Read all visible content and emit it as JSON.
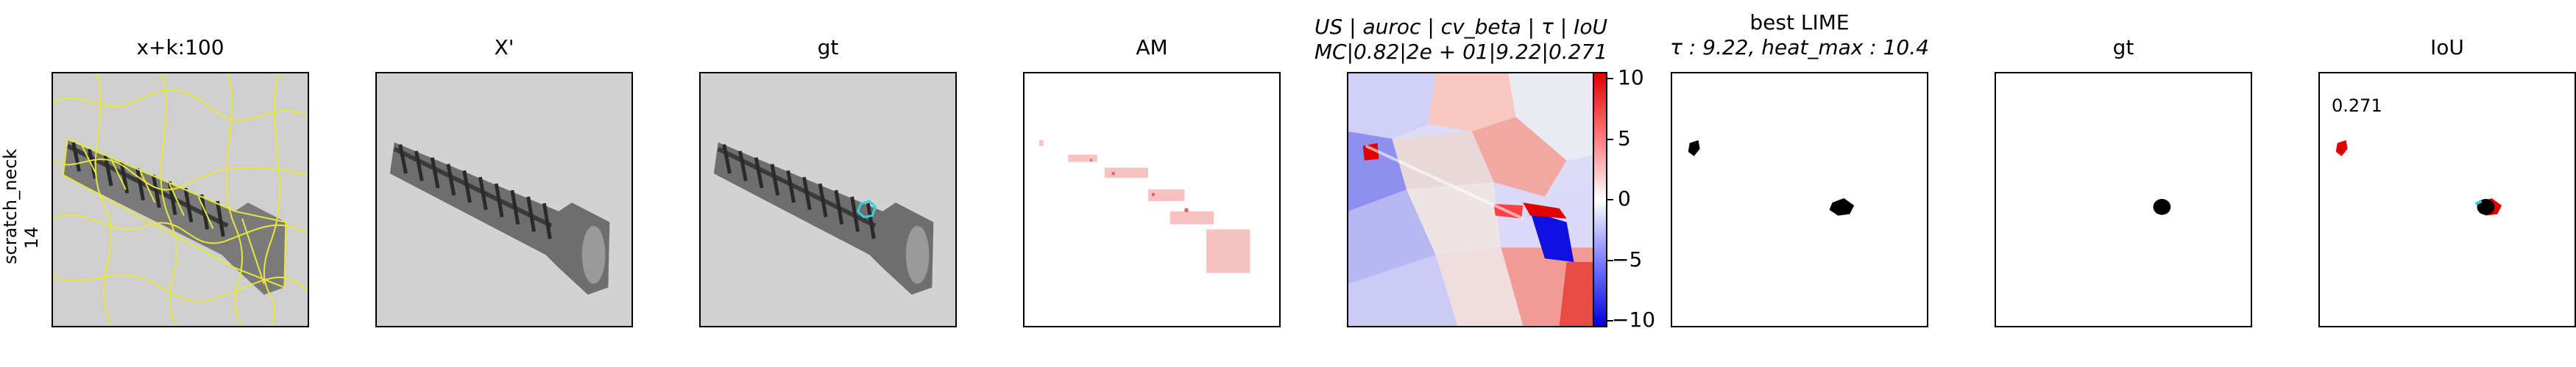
{
  "row_label": {
    "line1": "scratch_neck",
    "line2": "14"
  },
  "panels": [
    {
      "title": "x+k:100"
    },
    {
      "title": "X'"
    },
    {
      "title": "gt"
    },
    {
      "title": "AM"
    },
    {
      "title_line1": "US | auroc | cv_beta | τ | IoU",
      "title_line2": "MC|0.82|2e + 01|9.22|0.271"
    },
    {
      "title_line1": "best LIME",
      "title_line2": "τ : 9.22, heat_max : 10.4"
    },
    {
      "title": "gt"
    },
    {
      "title": "IoU",
      "annotation": "0.271"
    }
  ],
  "colorbar": {
    "ticks": [
      "10",
      "5",
      "0",
      "−5",
      "−10"
    ],
    "range": [
      -10.4,
      10.4
    ]
  },
  "colors": {
    "contour": "#e8e83a",
    "gt_overlay": "#2fd3d8",
    "positive": "#e00000",
    "negative": "#0000e0",
    "mask": "#000000"
  }
}
